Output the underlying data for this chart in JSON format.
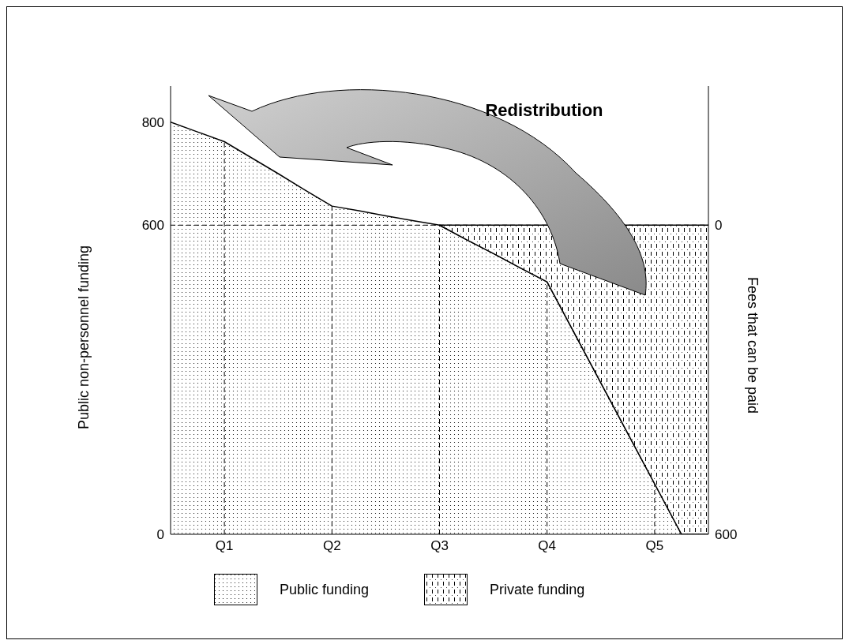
{
  "chart_data": {
    "type": "area",
    "stacked": true,
    "categories": [
      null,
      null,
      "Q1",
      null,
      null,
      null,
      "Q2",
      null,
      null,
      null,
      "Q3",
      null,
      null,
      null,
      "Q4",
      null,
      null,
      null,
      "Q5",
      null,
      null
    ],
    "series": [
      {
        "name": "Public funding",
        "color": "#000000",
        "values": [
          800,
          781,
          762,
          731,
          700,
          668,
          637,
          628,
          618,
          609,
          600,
          572,
          545,
          517,
          490,
          392,
          294,
          196,
          98,
          0,
          0
        ]
      },
      {
        "name": "Private funding",
        "color": "#000000",
        "values": [
          null,
          null,
          null,
          null,
          null,
          null,
          null,
          null,
          null,
          null,
          0,
          28,
          55,
          83,
          110,
          null,
          null,
          404,
          502,
          600,
          600
        ]
      }
    ],
    "ylim": [
      0,
      870
    ],
    "yticks": [
      0,
      600,
      800
    ],
    "y2lim": [
      600,
      -270
    ],
    "y2ticks": [
      0,
      600
    ],
    "ylabel": "Public non-personnel funding",
    "y2label": "Fees that can be paid",
    "ref_lines": [
      {
        "axis": "x",
        "value": "Q1",
        "line_style": "dashed"
      },
      {
        "axis": "x",
        "value": "Q2",
        "line_style": "dashed"
      },
      {
        "axis": "x",
        "value": "Q3",
        "line_style": "dashed"
      },
      {
        "axis": "x",
        "value": "Q4",
        "line_style": "dashed"
      },
      {
        "axis": "x",
        "value": "Q5",
        "line_style": "dashed"
      },
      {
        "axis": "y",
        "value": 600,
        "line_style": "dashed"
      }
    ],
    "annotations": [
      "Redistribution"
    ],
    "legend": "bottom"
  }
}
